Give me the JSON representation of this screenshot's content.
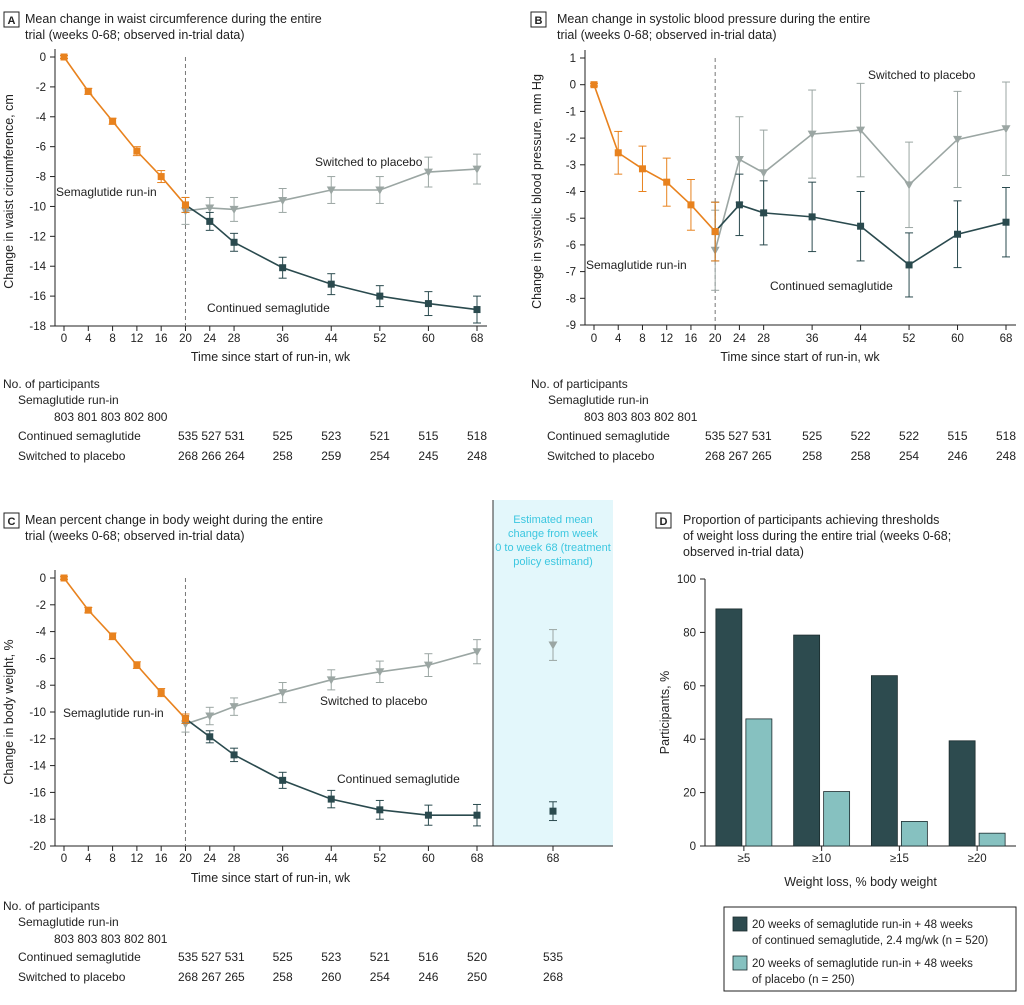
{
  "colors": {
    "runin": "#E8821E",
    "continued": "#2A4A4E",
    "placebo": "#9BA6A3",
    "bar_continued": "#2D4B4F",
    "bar_placebo": "#86C1C0",
    "estimand_bg": "#E3F7FB",
    "estimand_text": "#3CC7E0"
  },
  "participants_heading": "No. of participants",
  "chart_data": [
    {
      "panel": "A",
      "type": "line",
      "title_line1": "Mean change in waist circumference during the entire",
      "title_line2": "trial (weeks 0-68; observed in-trial data)",
      "xlabel": "Time since start of run-in, wk",
      "ylabel": "Change in waist circumference, cm",
      "ylim": [
        -18,
        0
      ],
      "yticks": [
        0,
        -2,
        -4,
        -6,
        -8,
        -10,
        -12,
        -14,
        -16,
        -18
      ],
      "yticklabels": [
        "0",
        "-2",
        "-4",
        "-6",
        "-8",
        "-10",
        "-12",
        "-14",
        "-16",
        "-18"
      ],
      "xticks": [
        0,
        4,
        8,
        12,
        16,
        20,
        24,
        28,
        36,
        44,
        52,
        60,
        68
      ],
      "xticklabels": [
        "0",
        "4",
        "8",
        "12",
        "16",
        "20",
        "24",
        "28",
        "36",
        "44",
        "52",
        "60",
        "68"
      ],
      "divider_week": 20,
      "series": [
        {
          "name": "Semaglutide run-in",
          "key": "runin",
          "marker": "square",
          "x": [
            0,
            4,
            8,
            12,
            16,
            20
          ],
          "y": [
            0,
            -2.3,
            -4.3,
            -6.3,
            -8.0,
            -9.9
          ],
          "err": [
            0.1,
            0.2,
            0.2,
            0.3,
            0.4,
            0.5
          ]
        },
        {
          "name": "Continued semaglutide",
          "key": "continued",
          "marker": "square",
          "x": [
            20,
            24,
            28,
            36,
            44,
            52,
            60,
            68
          ],
          "y": [
            -9.9,
            -11.0,
            -12.4,
            -14.1,
            -15.2,
            -16.0,
            -16.5,
            -16.9
          ],
          "err": [
            0.5,
            0.6,
            0.6,
            0.7,
            0.7,
            0.7,
            0.8,
            0.9
          ]
        },
        {
          "name": "Switched to placebo",
          "key": "placebo",
          "marker": "triangle",
          "x": [
            20,
            24,
            28,
            36,
            44,
            52,
            60,
            68
          ],
          "y": [
            -10.3,
            -10.1,
            -10.2,
            -9.6,
            -8.9,
            -8.9,
            -7.7,
            -7.5
          ],
          "err": [
            0.9,
            0.7,
            0.8,
            0.8,
            0.9,
            0.9,
            1.0,
            1.0
          ]
        }
      ],
      "annotations": [
        {
          "series": "runin",
          "text": "Semaglutide run-in"
        },
        {
          "series": "continued",
          "text": "Continued semaglutide"
        },
        {
          "series": "placebo",
          "text": "Switched to placebo"
        }
      ],
      "participants": {
        "runin_label": "Semaglutide run-in",
        "runin_counts": "803 801 803 802 800",
        "rows": [
          {
            "label": "Continued semaglutide",
            "first": "535 527 531",
            "rest": [
              "525",
              "523",
              "521",
              "515",
              "518"
            ]
          },
          {
            "label": "Switched to placebo",
            "first": "268 266 264",
            "rest": [
              "258",
              "259",
              "254",
              "245",
              "248"
            ]
          }
        ]
      }
    },
    {
      "panel": "B",
      "type": "line",
      "title_line1": "Mean change in systolic blood pressure during the entire",
      "title_line2": "trial (weeks 0-68; observed in-trial data)",
      "xlabel": "Time since start of run-in, wk",
      "ylabel": "Change in systolic blood pressure, mm Hg",
      "ylim": [
        -9,
        1
      ],
      "yticks": [
        1,
        0,
        -1,
        -2,
        -3,
        -4,
        -5,
        -6,
        -7,
        -8,
        -9
      ],
      "yticklabels": [
        "1",
        "0",
        "-1",
        "-2",
        "-3",
        "-4",
        "-5",
        "-6",
        "-7",
        "-8",
        "-9"
      ],
      "xticks": [
        0,
        4,
        8,
        12,
        16,
        20,
        24,
        28,
        36,
        44,
        52,
        60,
        68
      ],
      "xticklabels": [
        "0",
        "4",
        "8",
        "12",
        "16",
        "20",
        "24",
        "28",
        "36",
        "44",
        "52",
        "60",
        "68"
      ],
      "divider_week": 20,
      "series": [
        {
          "name": "Semaglutide run-in",
          "key": "runin",
          "marker": "square",
          "x": [
            0,
            4,
            8,
            12,
            16,
            20
          ],
          "y": [
            0,
            -2.55,
            -3.15,
            -3.65,
            -4.5,
            -5.5
          ],
          "err": [
            0.05,
            0.8,
            0.85,
            0.9,
            0.95,
            1.1
          ]
        },
        {
          "name": "Continued semaglutide",
          "key": "continued",
          "marker": "square",
          "x": [
            20,
            24,
            28,
            36,
            44,
            52,
            60,
            68
          ],
          "y": [
            -5.5,
            -4.5,
            -4.8,
            -4.95,
            -5.3,
            -6.75,
            -5.6,
            -5.15
          ],
          "err": [
            1.1,
            1.15,
            1.2,
            1.3,
            1.3,
            1.2,
            1.25,
            1.3
          ]
        },
        {
          "name": "Switched to placebo",
          "key": "placebo",
          "marker": "triangle",
          "x": [
            20,
            24,
            28,
            36,
            44,
            52,
            60,
            68
          ],
          "y": [
            -6.2,
            -2.8,
            -3.3,
            -1.85,
            -1.7,
            -3.75,
            -2.05,
            -1.65
          ],
          "err": [
            1.5,
            1.6,
            1.6,
            1.65,
            1.75,
            1.6,
            1.8,
            1.75
          ]
        }
      ],
      "annotations": [
        {
          "series": "runin",
          "text": "Semaglutide run-in"
        },
        {
          "series": "continued",
          "text": "Continued semaglutide"
        },
        {
          "series": "placebo",
          "text": "Switched to placebo"
        }
      ],
      "participants": {
        "runin_label": "Semaglutide run-in",
        "runin_counts": "803 803 803 802 801",
        "rows": [
          {
            "label": "Continued semaglutide",
            "first": "535 527 531",
            "rest": [
              "525",
              "522",
              "522",
              "515",
              "518"
            ]
          },
          {
            "label": "Switched to placebo",
            "first": "268 267 265",
            "rest": [
              "258",
              "258",
              "254",
              "246",
              "248"
            ]
          }
        ]
      }
    },
    {
      "panel": "C",
      "type": "line",
      "title_line1": "Mean percent change in body weight during the entire",
      "title_line2": "trial (weeks 0-68; observed in-trial data)",
      "xlabel": "Time since start of run-in, wk",
      "ylabel": "Change in body weight, %",
      "ylim": [
        -20,
        0
      ],
      "yticks": [
        0,
        -2,
        -4,
        -6,
        -8,
        -10,
        -12,
        -14,
        -16,
        -18,
        -20
      ],
      "yticklabels": [
        "0",
        "-2",
        "-4",
        "-6",
        "-8",
        "-10",
        "-12",
        "-14",
        "-16",
        "-18",
        "-20"
      ],
      "xticks": [
        0,
        4,
        8,
        12,
        16,
        20,
        24,
        28,
        36,
        44,
        52,
        60,
        68
      ],
      "xticklabels": [
        "0",
        "4",
        "8",
        "12",
        "16",
        "20",
        "24",
        "28",
        "36",
        "44",
        "52",
        "60",
        "68"
      ],
      "divider_week": 20,
      "series": [
        {
          "name": "Semaglutide run-in",
          "key": "runin",
          "marker": "square",
          "x": [
            0,
            4,
            8,
            12,
            16,
            20
          ],
          "y": [
            0,
            -2.4,
            -4.35,
            -6.5,
            -8.55,
            -10.5
          ],
          "err": [
            0.1,
            0.2,
            0.25,
            0.25,
            0.3,
            0.35
          ]
        },
        {
          "name": "Continued semaglutide",
          "key": "continued",
          "marker": "square",
          "x": [
            20,
            24,
            28,
            36,
            44,
            52,
            60,
            68
          ],
          "y": [
            -10.5,
            -11.85,
            -13.2,
            -15.1,
            -16.5,
            -17.3,
            -17.7,
            -17.7
          ],
          "err": [
            0.35,
            0.45,
            0.5,
            0.6,
            0.65,
            0.7,
            0.75,
            0.8
          ]
        },
        {
          "name": "Switched to placebo",
          "key": "placebo",
          "marker": "triangle",
          "x": [
            20,
            24,
            28,
            36,
            44,
            52,
            60,
            68
          ],
          "y": [
            -10.9,
            -10.3,
            -9.6,
            -8.55,
            -7.6,
            -7.0,
            -6.5,
            -5.5
          ],
          "err": [
            0.6,
            0.65,
            0.65,
            0.75,
            0.75,
            0.8,
            0.85,
            0.9
          ]
        }
      ],
      "estimand": {
        "label_lines": [
          "Estimated mean",
          "change from week",
          "0 to week 68 (treatment",
          "policy estimand)"
        ],
        "x_label": "68",
        "placebo": {
          "y": -5.0,
          "err": 1.15
        },
        "continued": {
          "y": -17.4,
          "err": 0.7
        }
      },
      "annotations": [
        {
          "series": "runin",
          "text": "Semaglutide run-in"
        },
        {
          "series": "continued",
          "text": "Continued semaglutide"
        },
        {
          "series": "placebo",
          "text": "Switched to placebo"
        }
      ],
      "participants": {
        "runin_label": "Semaglutide run-in",
        "runin_counts": "803 803 803 802 801",
        "rows": [
          {
            "label": "Continued semaglutide",
            "first": "535 527 531",
            "rest": [
              "525",
              "523",
              "521",
              "516",
              "520"
            ],
            "estimand": "535"
          },
          {
            "label": "Switched to placebo",
            "first": "268 267 265",
            "rest": [
              "258",
              "260",
              "254",
              "246",
              "250"
            ],
            "estimand": "268"
          }
        ]
      }
    },
    {
      "panel": "D",
      "type": "bar",
      "title_line1": "Proportion of participants achieving thresholds",
      "title_line2": "of weight loss during the entire trial (weeks 0-68;",
      "title_line3": "observed in-trial data)",
      "xlabel": "Weight loss, % body weight",
      "ylabel": "Participants, %",
      "ylim": [
        0,
        100
      ],
      "yticks": [
        0,
        20,
        40,
        60,
        80,
        100
      ],
      "yticklabels": [
        "0",
        "20",
        "40",
        "60",
        "80",
        "100"
      ],
      "categories": [
        "≥5",
        "≥10",
        "≥15",
        "≥20"
      ],
      "series": [
        {
          "name": "20 weeks of semaglutide run-in + 48 weeks of continued semaglutide, 2.4 mg/wk (n = 520)",
          "legend_lines": [
            "20 weeks of semaglutide run-in + 48 weeks",
            "of continued semaglutide, 2.4 mg/wk (n = 520)"
          ],
          "key": "bar_continued",
          "values": [
            88.8,
            79.0,
            63.8,
            39.4
          ]
        },
        {
          "name": "20 weeks of semaglutide run-in + 48 weeks of placebo (n = 250)",
          "legend_lines": [
            "20 weeks of semaglutide run-in + 48 weeks",
            "of placebo (n = 250)"
          ],
          "key": "bar_placebo",
          "values": [
            47.6,
            20.4,
            9.2,
            4.8
          ]
        }
      ]
    }
  ]
}
